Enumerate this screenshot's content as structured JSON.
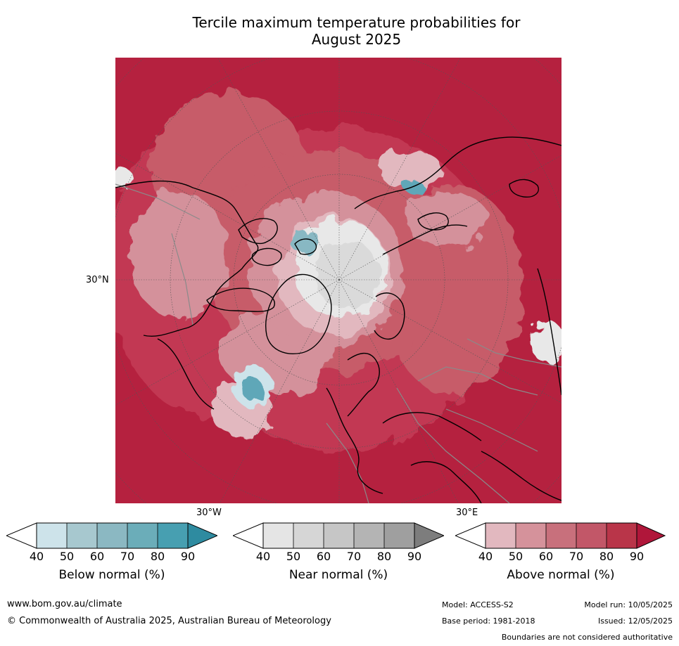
{
  "title": {
    "line1": "Tercile maximum temperature probabilities for",
    "line2": "August 2025"
  },
  "map": {
    "lat_label": "30°N",
    "lon_label_west": "30°W",
    "lon_label_east": "30°E",
    "colors": {
      "dominant_above": "#b5213f",
      "above_80": "#c23952",
      "above_70": "#c75b69",
      "above_60": "#d4919b",
      "above_50": "#e2b8bf",
      "near_50": "#dadada",
      "near_40": "#e8e8e8",
      "below_60": "#88b8c3",
      "below_70": "#5fa7b8"
    }
  },
  "colorbars": [
    {
      "label": "Below normal (%)",
      "ticks": [
        "40",
        "50",
        "60",
        "70",
        "80",
        "90"
      ],
      "colors": [
        "#ffffff",
        "#cde3ea",
        "#a7c8cf",
        "#8bb8c2",
        "#6badb9",
        "#479fb1",
        "#2e8ba0"
      ]
    },
    {
      "label": "Near normal (%)",
      "ticks": [
        "40",
        "50",
        "60",
        "70",
        "80",
        "90"
      ],
      "colors": [
        "#ffffff",
        "#e5e5e5",
        "#d6d6d6",
        "#c6c6c6",
        "#b4b4b4",
        "#9f9f9f",
        "#7d7d7d"
      ]
    },
    {
      "label": "Above normal (%)",
      "ticks": [
        "40",
        "50",
        "60",
        "70",
        "80",
        "90"
      ],
      "colors": [
        "#ffffff",
        "#e2b8bf",
        "#d5929b",
        "#c8707c",
        "#c25768",
        "#b93549",
        "#b0163a"
      ]
    }
  ],
  "footer": {
    "url": "www.bom.gov.au/climate",
    "copyright": "© Commonwealth of Australia 2025, Australian Bureau of Meteorology",
    "model": "Model: ACCESS-S2",
    "model_run": "Model run: 10/05/2025",
    "base_period": "Base period: 1981-2018",
    "issued": "Issued: 12/05/2025",
    "disclaimer": "Boundaries are not considered authoritative"
  }
}
